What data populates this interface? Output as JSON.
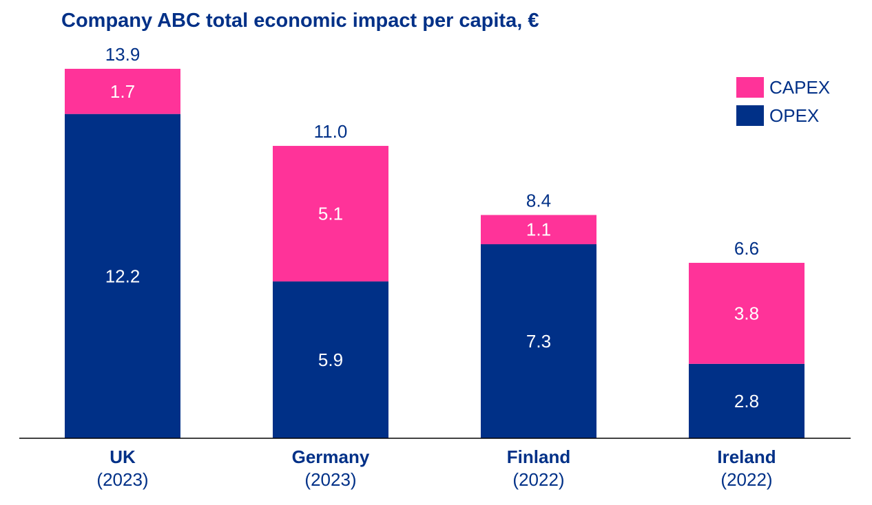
{
  "chart_data": {
    "type": "bar",
    "stacked": true,
    "title": "Company ABC total economic impact per capita, €",
    "categories": [
      {
        "name": "UK",
        "period": "(2023)"
      },
      {
        "name": "Germany",
        "period": "(2023)"
      },
      {
        "name": "Finland",
        "period": "(2022)"
      },
      {
        "name": "Ireland",
        "period": "(2022)"
      }
    ],
    "series": [
      {
        "name": "OPEX",
        "color": "#003087",
        "values": [
          12.2,
          5.9,
          7.3,
          2.8
        ],
        "labels": [
          "12.2",
          "5.9",
          "7.3",
          "2.8"
        ]
      },
      {
        "name": "CAPEX",
        "color": "#FF3399",
        "values": [
          1.7,
          5.1,
          1.1,
          3.8
        ],
        "labels": [
          "1.7",
          "5.1",
          "1.1",
          "3.8"
        ]
      }
    ],
    "totals": [
      13.9,
      11.0,
      8.4,
      6.6
    ],
    "total_labels": [
      "13.9",
      "11.0",
      "8.4",
      "6.6"
    ],
    "xlabel": "",
    "ylabel": "",
    "ylim": [
      0,
      13.9
    ],
    "grid": false,
    "legend_position": "top-right",
    "legend": [
      {
        "name": "CAPEX",
        "color": "#FF3399"
      },
      {
        "name": "OPEX",
        "color": "#003087"
      }
    ]
  }
}
